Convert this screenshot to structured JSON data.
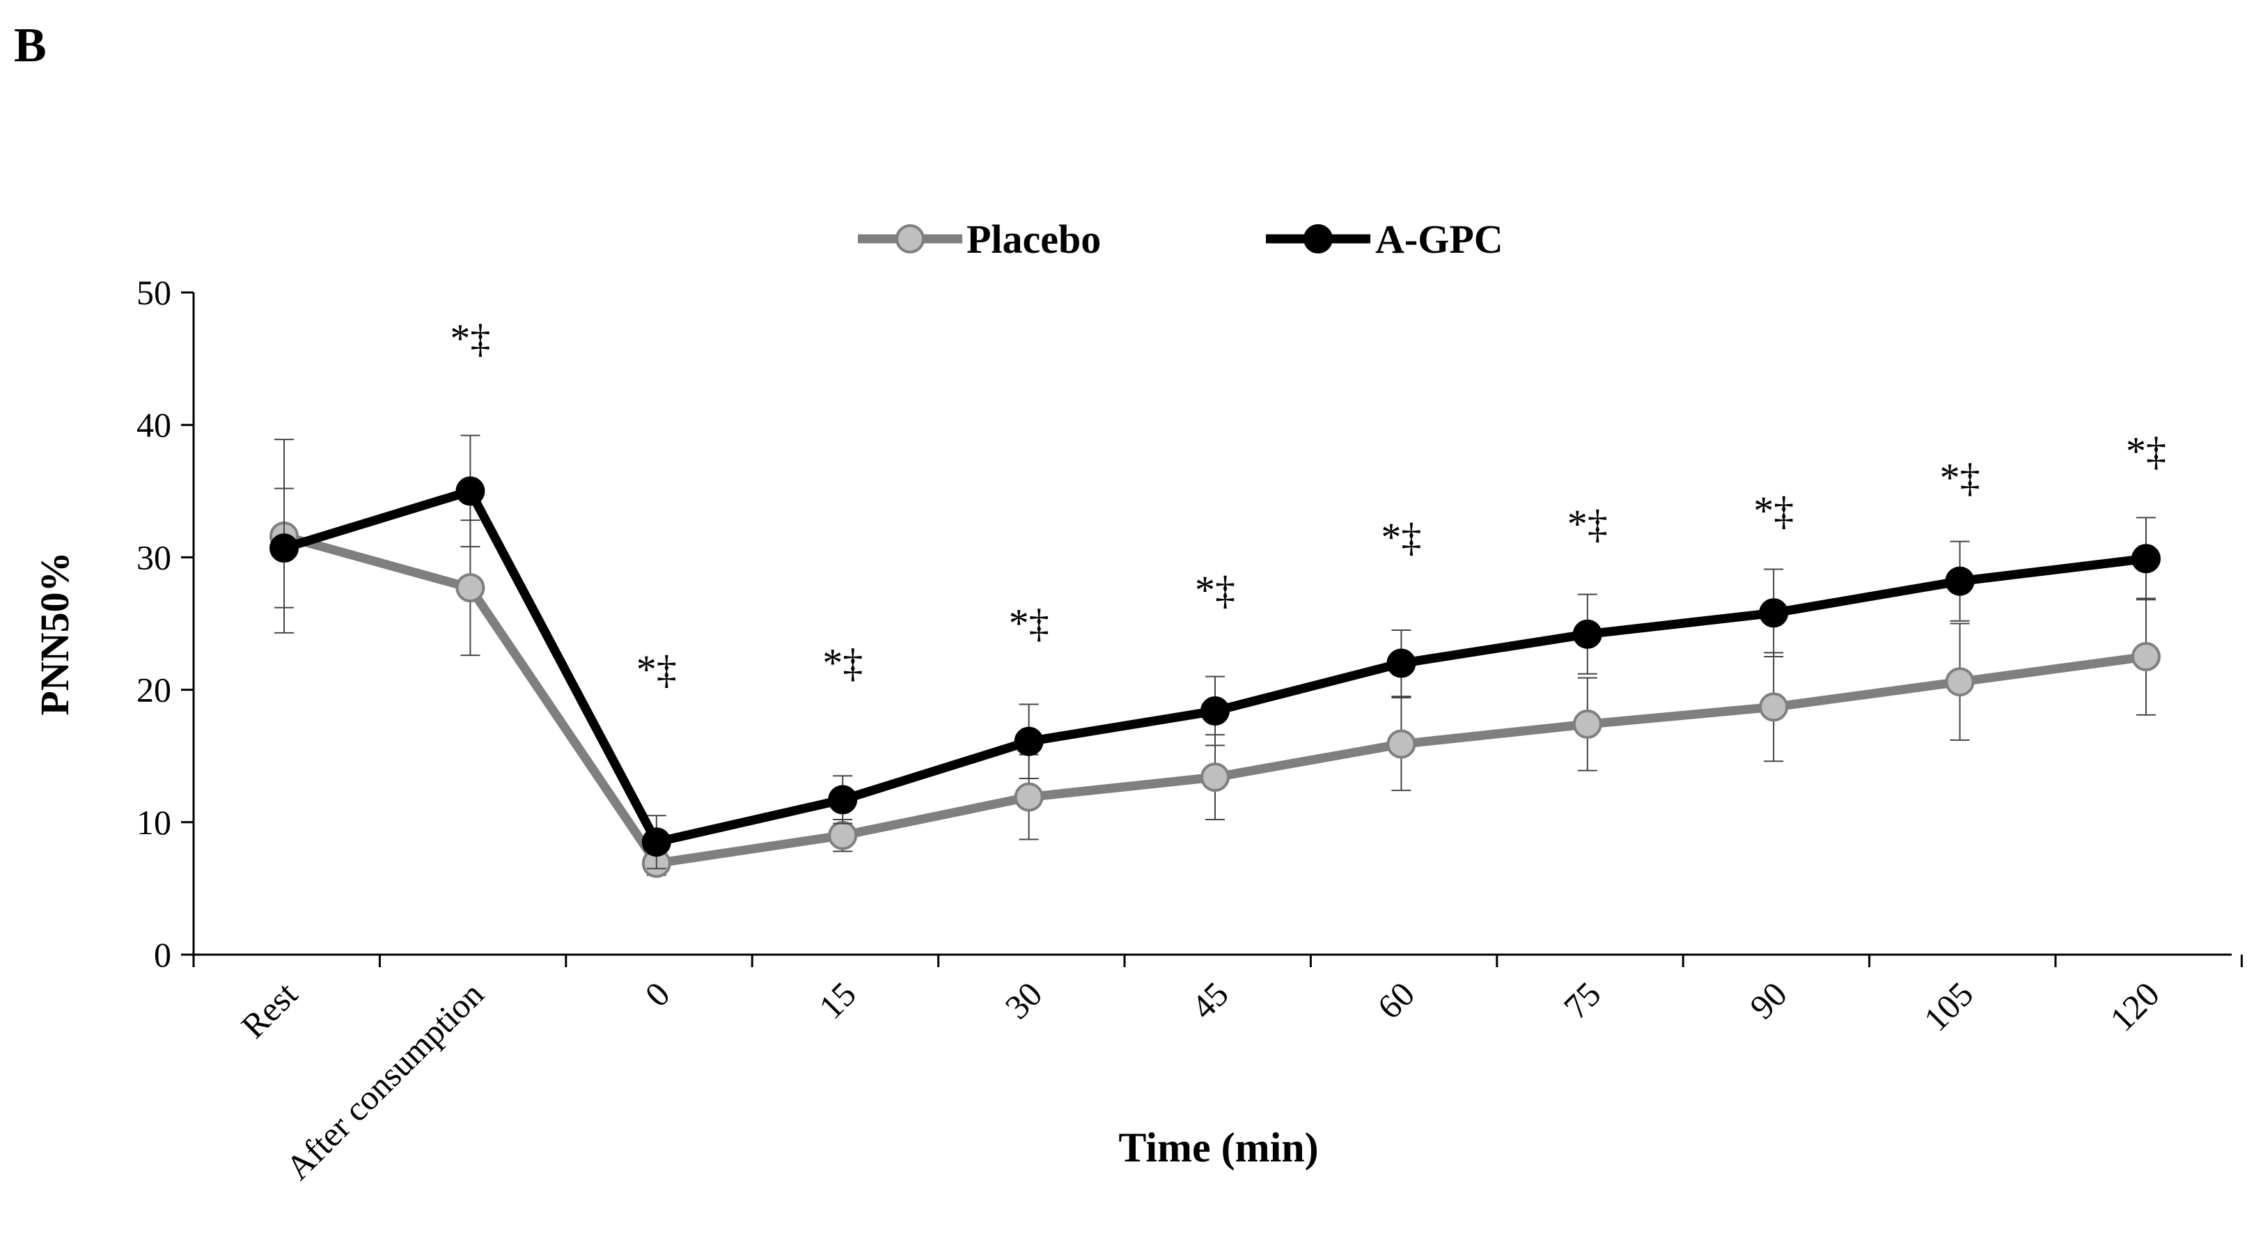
{
  "panel_label": "B",
  "chart_data": {
    "type": "line",
    "title": "",
    "xlabel": "Time (min)",
    "ylabel": "PNN50%",
    "ylim": [
      0,
      50
    ],
    "yticks": [
      0,
      10,
      20,
      30,
      40,
      50
    ],
    "grid": false,
    "legend_position": "top-center",
    "categories": [
      "Rest",
      "After consumption",
      "0",
      "15",
      "30",
      "45",
      "60",
      "75",
      "90",
      "105",
      "120"
    ],
    "series": [
      {
        "name": "Placebo",
        "color": "#7f7f7f",
        "marker_fill": "#bfbfbf",
        "values": [
          31.6,
          27.7,
          6.9,
          9.0,
          11.9,
          13.4,
          15.9,
          17.4,
          18.7,
          20.6,
          22.5
        ],
        "errors": [
          7.3,
          5.1,
          0.9,
          1.2,
          3.2,
          3.2,
          3.5,
          3.5,
          4.1,
          4.4,
          4.4
        ]
      },
      {
        "name": "A-GPC",
        "color": "#000000",
        "marker_fill": "#000000",
        "values": [
          30.7,
          35.0,
          8.5,
          11.7,
          16.1,
          18.4,
          22.0,
          24.2,
          25.8,
          28.2,
          29.9
        ],
        "errors": [
          4.5,
          4.2,
          2.0,
          1.8,
          2.8,
          2.6,
          2.5,
          3.0,
          3.3,
          3.0,
          3.1
        ]
      }
    ],
    "annotations": [
      {
        "category": "After consumption",
        "text": "*‡",
        "y": 45.5
      },
      {
        "category": "0",
        "text": "*‡",
        "y": 20.5
      },
      {
        "category": "15",
        "text": "*‡",
        "y": 21.0
      },
      {
        "category": "30",
        "text": "*‡",
        "y": 24.0
      },
      {
        "category": "45",
        "text": "*‡",
        "y": 26.5
      },
      {
        "category": "60",
        "text": "*‡",
        "y": 30.5
      },
      {
        "category": "75",
        "text": "*‡",
        "y": 31.5
      },
      {
        "category": "90",
        "text": "*‡",
        "y": 32.5
      },
      {
        "category": "105",
        "text": "*‡",
        "y": 35.0
      },
      {
        "category": "120",
        "text": "*‡",
        "y": 37.0
      }
    ]
  }
}
